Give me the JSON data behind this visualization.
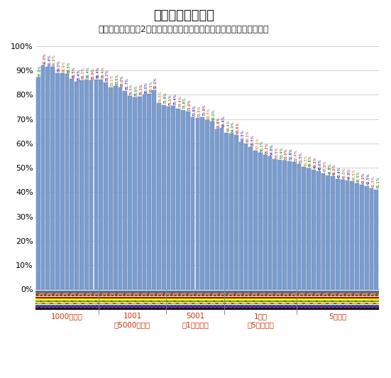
{
  "title": "主な資金決済手段",
  "subtitle": "（二人以上世帯、2つまでの複数回答で「現金」回答率、支払金額別）",
  "bar_color": "#7B9DCE",
  "bar_edge_color": "#5a7aaa",
  "values": [
    87.0,
    92.0,
    91.4,
    91.5,
    89.0,
    88.9,
    88.5,
    86.5,
    85.4,
    86.1,
    86.4,
    85.9,
    86.4,
    86.4,
    85.2,
    83.1,
    83.5,
    83.0,
    81.7,
    79.5,
    78.9,
    79.3,
    80.0,
    80.5,
    82.0,
    76.5,
    75.8,
    75.1,
    75.4,
    74.4,
    73.8,
    73.0,
    70.8,
    70.5,
    70.9,
    69.5,
    69.0,
    65.8,
    66.4,
    64.4,
    64.0,
    63.6,
    60.5,
    60.1,
    58.5,
    57.2,
    56.1,
    55.2,
    54.6,
    53.5,
    53.4,
    53.0,
    52.8,
    52.4,
    51.5,
    50.3,
    49.8,
    49.3,
    48.6,
    47.8,
    46.8,
    46.5,
    45.4,
    45.0,
    44.8,
    44.5,
    43.5,
    43.0,
    42.5,
    41.5,
    41.1
  ],
  "yticks": [
    0,
    10,
    20,
    30,
    40,
    50,
    60,
    70,
    80,
    90,
    100
  ],
  "background_color": "#ffffff",
  "grid_color": "#c0c0c0",
  "group_labels": [
    "1000円以下",
    "1001\n〜5000円以下",
    "5001\n〜1万円以下",
    "1万超\n〜5万円以下",
    "5万円超"
  ],
  "group_sizes": [
    13,
    14,
    12,
    15,
    17
  ],
  "title_fontsize": 13,
  "subtitle_fontsize": 9,
  "label_fontsize": 3.8,
  "strip_colors": [
    "#4472C4",
    "#ED7D31",
    "#A9D18E",
    "#FF0000",
    "#FFFF00",
    "#70AD47",
    "#FFC000",
    "#5B9BD5",
    "#7030A0",
    "#000000"
  ],
  "strip_patterns": [
    "",
    "/",
    "o",
    "-",
    "",
    "\\",
    "x",
    "+",
    ".",
    ""
  ],
  "label_color_cycle": [
    "#006400",
    "#8B0000",
    "#00008B",
    "#8B4513",
    "#4B0082",
    "#CC6600",
    "#006400",
    "#8B0000",
    "#00008B",
    "#8B4513"
  ]
}
